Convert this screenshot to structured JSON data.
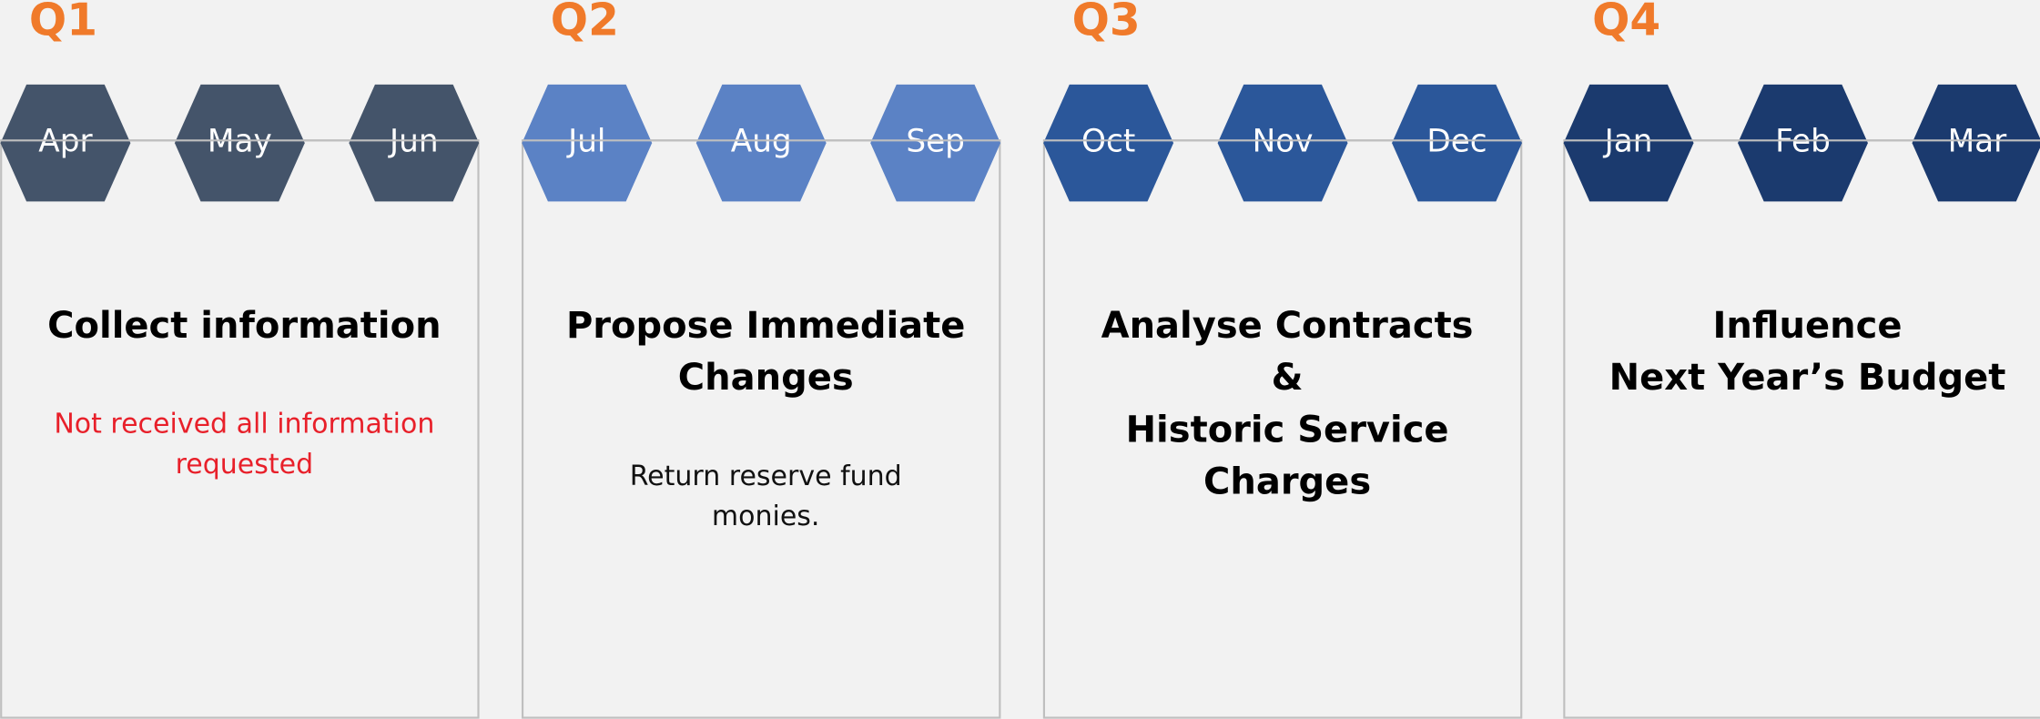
{
  "quarters": [
    {
      "label": "Q1",
      "months": [
        "Apr",
        "May",
        "Jun"
      ],
      "title": [
        "Collect information"
      ],
      "note": [
        "Not received all information",
        "requested"
      ]
    },
    {
      "label": "Q2",
      "months": [
        "Jul",
        "Aug",
        "Sep"
      ],
      "title": [
        "Propose Immediate",
        "Changes"
      ],
      "note": [
        "Return reserve fund",
        "monies."
      ]
    },
    {
      "label": "Q3",
      "months": [
        "Oct",
        "Nov",
        "Dec"
      ],
      "title": [
        "Analyse Contracts",
        "&",
        "Historic Service",
        "Charges"
      ],
      "note": []
    },
    {
      "label": "Q4",
      "months": [
        "Jan",
        "Feb",
        "Mar"
      ],
      "title": [
        "Influence",
        "Next Year’s Budget"
      ],
      "note": []
    }
  ]
}
